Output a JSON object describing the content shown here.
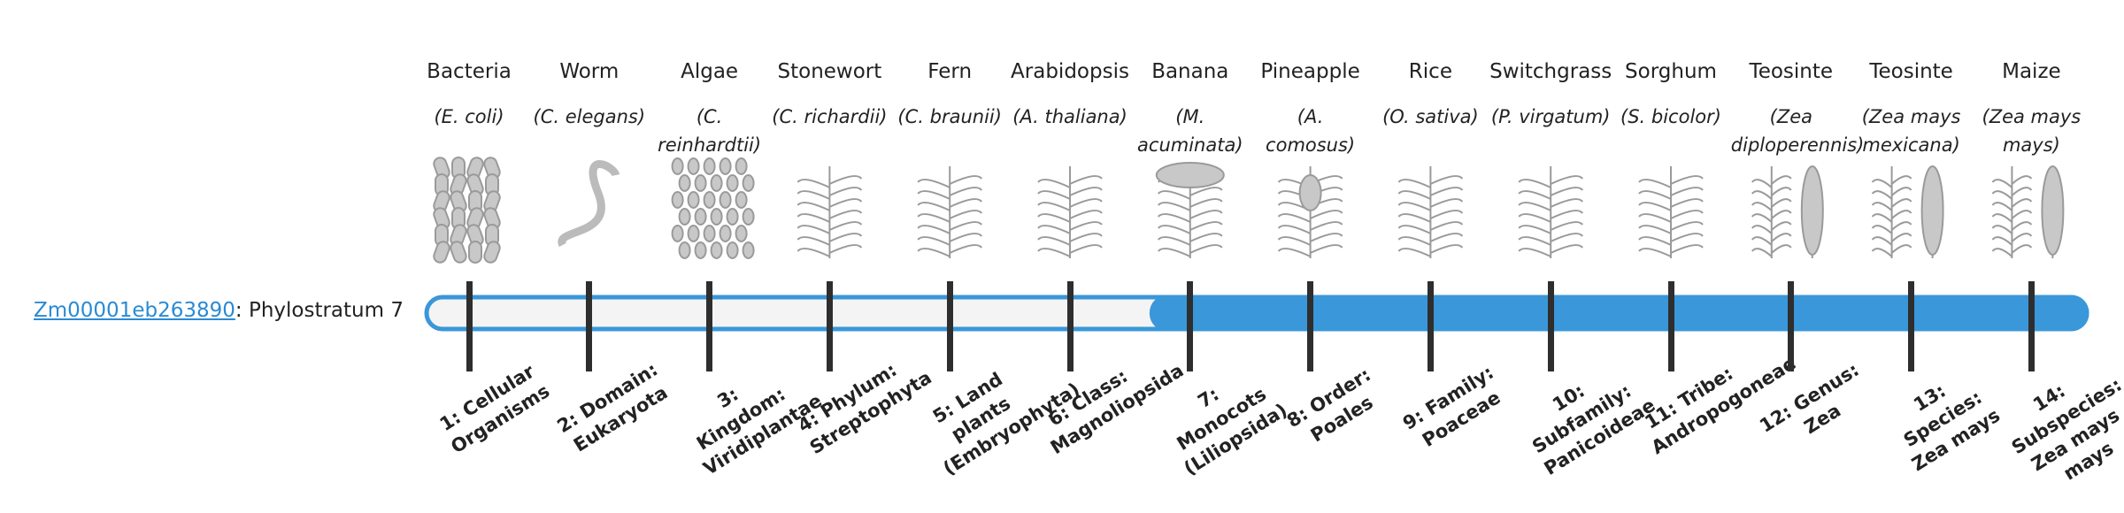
{
  "gene_id": "Zm00001eb263890",
  "gene_text": ": Phylostratum",
  "phylostratum": 7,
  "strata": [
    {
      "name": "Bacteria",
      "species": "(E. coli)",
      "label": "1: Cellular Organisms"
    },
    {
      "name": "Worm",
      "species": "(C. elegans)",
      "label": "2: Domain: Eukaryota"
    },
    {
      "name": "Algae",
      "species": "(C. reinhardtii)",
      "label": "3: Kingdom: Viridiplantae"
    },
    {
      "name": "Stonewort",
      "species": "(C. richardii)",
      "label": "4: Phylum: Streptophyta"
    },
    {
      "name": "Fern",
      "species": "(C. braunii)",
      "label": "5: Land plants (Embryophyta)"
    },
    {
      "name": "Arabidopsis",
      "species": "(A. thaliana)",
      "label": "6: Class: Magnoliopsida"
    },
    {
      "name": "Banana",
      "species": "(M. acuminata)",
      "label": "7: Monocots (Liliopsida)"
    },
    {
      "name": "Pineapple",
      "species": "(A. comosus)",
      "label": "8: Order: Poales"
    },
    {
      "name": "Rice",
      "species": "(O. sativa)",
      "label": "9: Family: Poaceae"
    },
    {
      "name": "Switchgrass",
      "species": "(P. virgatum)",
      "label": "10: Subfamily: Panicoideae"
    },
    {
      "name": "Sorghum",
      "species": "(S. bicolor)",
      "label": "11: Tribe: Andropogoneae"
    },
    {
      "name": "Teosinte",
      "species": "(Zea diploperennis)",
      "label": "12: Genus: Zea"
    },
    {
      "name": "Teosinte",
      "species": "(Zea mays mexicana)",
      "label": "13: Species: Zea mays"
    },
    {
      "name": "Maize",
      "species": "(Zea mays mays)",
      "label": "14: Subspecies: Zea mays mays"
    }
  ]
}
